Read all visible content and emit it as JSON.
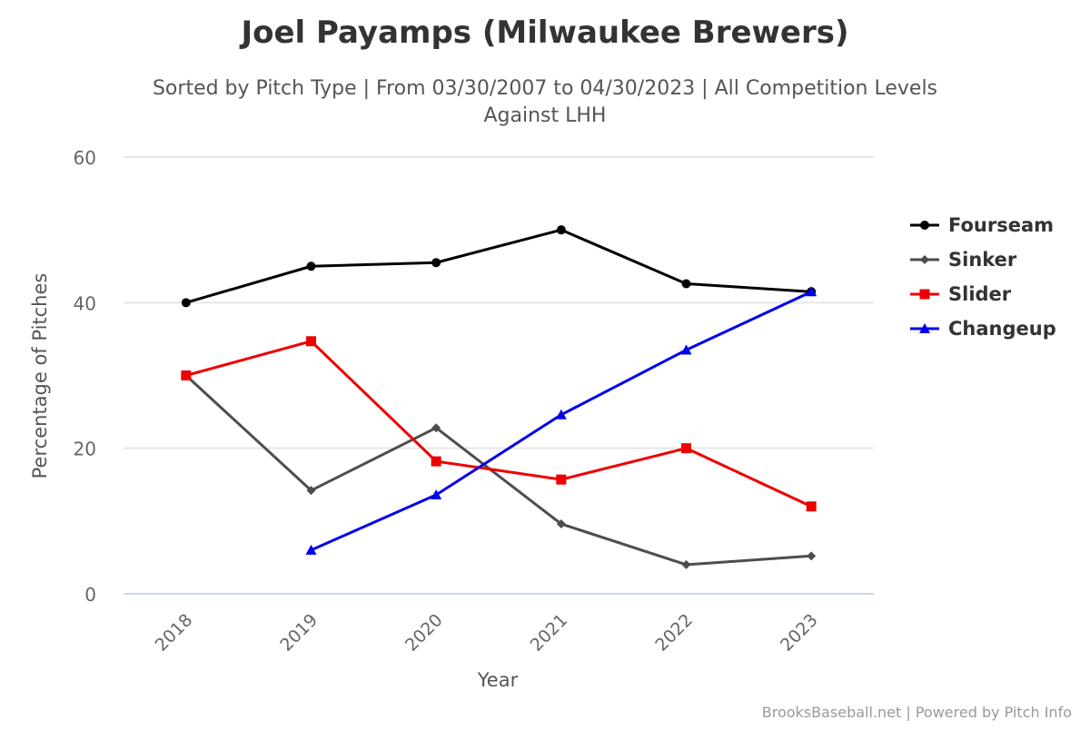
{
  "chart_data": {
    "type": "line",
    "title": "Joel Payamps (Milwaukee Brewers)",
    "subtitle": [
      "Sorted by Pitch Type | From 03/30/2007 to 04/30/2023 | All Competition Levels",
      "Against LHH"
    ],
    "xlabel": "Year",
    "ylabel": "Percentage of Pitches",
    "categories": [
      "2018",
      "2019",
      "2020",
      "2021",
      "2022",
      "2023"
    ],
    "ylim": [
      0,
      60
    ],
    "yticks": [
      0,
      20,
      40,
      60
    ],
    "grid": true,
    "legend_position": "right",
    "series": [
      {
        "name": "Fourseam",
        "color": "#000000",
        "marker": "circle",
        "values": [
          40.0,
          45.0,
          45.5,
          50.0,
          42.6,
          41.5
        ]
      },
      {
        "name": "Sinker",
        "color": "#4d4d4d",
        "marker": "diamond",
        "values": [
          30.0,
          14.2,
          22.8,
          9.6,
          4.0,
          5.2
        ]
      },
      {
        "name": "Slider",
        "color": "#ee0000",
        "marker": "square",
        "values": [
          30.0,
          34.7,
          18.2,
          15.7,
          20.0,
          12.0
        ]
      },
      {
        "name": "Changeup",
        "color": "#0000ee",
        "marker": "triangle",
        "values": [
          null,
          6.0,
          13.6,
          24.6,
          33.5,
          41.5
        ]
      }
    ],
    "credits": "BrooksBaseball.net | Powered by Pitch Info"
  }
}
